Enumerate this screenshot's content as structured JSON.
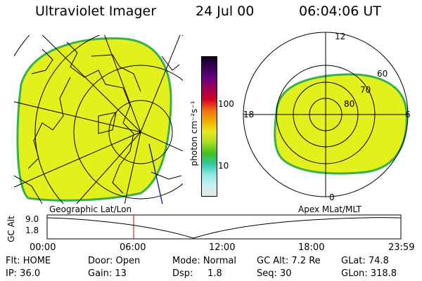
{
  "header": {
    "instrument": "Ultraviolet Imager",
    "date": "24 Jul 00",
    "time": "06:04:06 UT"
  },
  "colorbar": {
    "unit_label": "photon cm⁻²s⁻¹",
    "ticks": [
      "100",
      "10"
    ],
    "colors": [
      "#110022",
      "#3a0055",
      "#6a0080",
      "#a00050",
      "#d40020",
      "#f07010",
      "#f0b000",
      "#e8e820",
      "#a8dc20",
      "#40c020",
      "#30c8a0",
      "#8ee8e8",
      "#c8f0f0",
      "#e8e8e8"
    ]
  },
  "left_panel": {
    "caption": "Geographic Lat/Lon",
    "fill_color": "#e2f01c",
    "edge_color": "#38b050"
  },
  "right_panel": {
    "caption": "Apex MLat/MLT",
    "fill_color": "#e2f01c",
    "edge_color": "#38b050",
    "mlt_labels": [
      "12",
      "18",
      "6",
      "0"
    ],
    "lat_labels": [
      "60",
      "70",
      "80"
    ]
  },
  "altitude_plot": {
    "axis_title": "GC Alt",
    "y_ticks": [
      "9.0",
      "1.8"
    ],
    "x_ticks": [
      "00:00",
      "06:00",
      "12:00",
      "18:00",
      "23:59"
    ],
    "marker_time": "06:04",
    "marker_color": "#c00000"
  },
  "status": {
    "row1": [
      "Flt: HOME",
      "Door: Open",
      "Mode: Normal",
      "GC Alt: 7.2 Re",
      "GLat:  74.8"
    ],
    "row2": [
      "IP: 36.0",
      "Gain: 13",
      "Dsp:     1.8",
      "Seq: 30",
      "GLon: 318.8"
    ]
  }
}
